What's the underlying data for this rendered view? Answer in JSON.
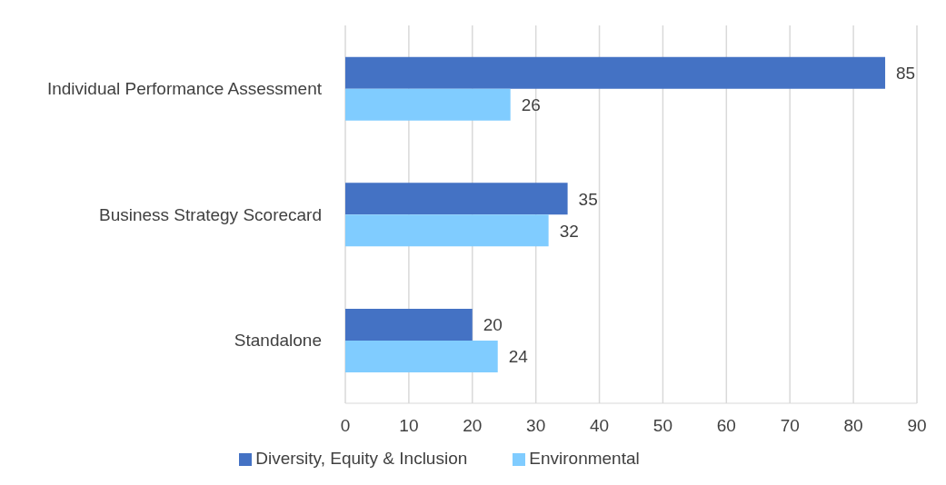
{
  "chart_data": {
    "type": "bar",
    "orientation": "horizontal",
    "categories": [
      "Individual Performance Assessment",
      "Business Strategy Scorecard",
      "Standalone"
    ],
    "series": [
      {
        "name": "Diversity, Equity & Inclusion",
        "color": "#4472c4",
        "values": [
          85,
          35,
          20
        ]
      },
      {
        "name": "Environmental",
        "color": "#80ccff",
        "values": [
          26,
          32,
          24
        ]
      }
    ],
    "xlim": [
      0,
      90
    ],
    "xticks": [
      0,
      10,
      20,
      30,
      40,
      50,
      60,
      70,
      80,
      90
    ],
    "grid": "x",
    "legend": "bottom",
    "data_labels": true
  }
}
